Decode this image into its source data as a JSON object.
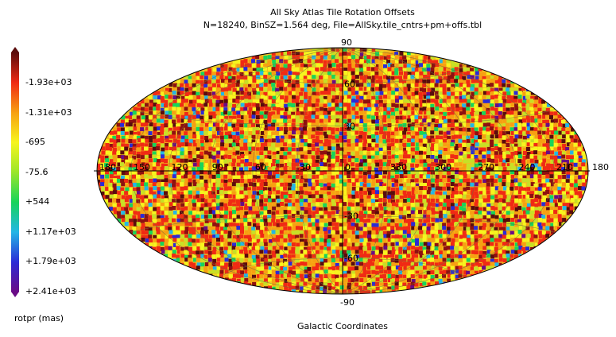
{
  "chart_data": {
    "type": "heatmap",
    "projection": "hammer-aitoff",
    "title": "All Sky Atlas Tile Rotation Offsets",
    "subtitle": "N=18240, BinSZ=1.564 deg, File=AllSky.tile_cntrs+pm+offs.tbl",
    "xlabel": "Galactic Coordinates",
    "colorbar_label": "rotpr (mas)",
    "colorbar_ticks": [
      "-1.93e+03",
      "-1.31e+03",
      "-695",
      "-75.6",
      "+544",
      "+1.17e+03",
      "+1.79e+03",
      "+2.41e+03"
    ],
    "colorbar_range": [
      -2240,
      2410
    ],
    "colorbar_orientation": "vertical-left",
    "longitude_ticks": [
      "180",
      "150",
      "120",
      "90",
      "60",
      "30",
      "0",
      "330",
      "300",
      "270",
      "240",
      "210",
      "180"
    ],
    "latitude_ticks": [
      "90",
      "60",
      "30",
      "-30",
      "-60",
      "-90"
    ],
    "grid": true,
    "n_tiles": 18240,
    "bin_size_deg": 1.564,
    "colormap": [
      "#6a0b86",
      "#2b2bd6",
      "#23b6e6",
      "#17d45a",
      "#9ae62a",
      "#f7f51e",
      "#f7a012",
      "#f02a14",
      "#5a0c0c"
    ]
  }
}
